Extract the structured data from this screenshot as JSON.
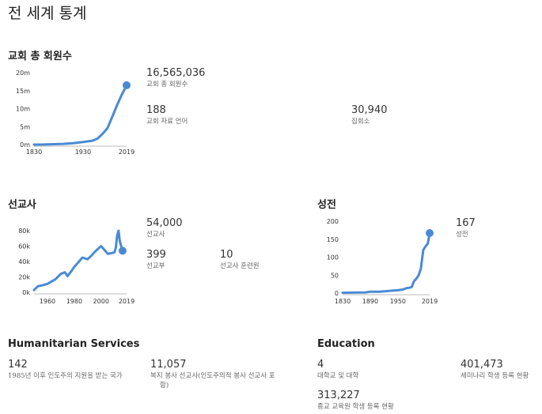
{
  "page": {
    "title": "전 세계 통계"
  },
  "colors": {
    "line": "#4a8ad4",
    "axis": "#bbbbbb",
    "text": "#333333"
  },
  "members": {
    "title": "교회 총 회원수",
    "stats": [
      {
        "value": "16,565,036",
        "label": "교회 총 회원수"
      },
      {
        "value": "188",
        "label": "교회 자료 언어"
      },
      {
        "value": "30,940",
        "label": "집회소"
      }
    ]
  },
  "missionaries": {
    "title": "선교사",
    "stats": [
      {
        "value": "54,000",
        "label": "선교사"
      },
      {
        "value": "399",
        "label": "선교부"
      },
      {
        "value": "10",
        "label": "선교사 훈련원"
      }
    ]
  },
  "temples": {
    "title": "성전",
    "stats": [
      {
        "value": "167",
        "label": "성전"
      }
    ]
  },
  "humanitarian": {
    "title": "Humanitarian Services",
    "stats": [
      {
        "value": "142",
        "label": "1985년 이후 인도주의 지원을 받는 국가"
      },
      {
        "value": "11,057",
        "label": "복지 봉사 선교사(인도주의적 봉사 선교사 포",
        "label_line2": "함)"
      }
    ]
  },
  "education": {
    "title": "Education",
    "stats": [
      {
        "value": "4",
        "label": "대학교 및 대학"
      },
      {
        "value": "401,473",
        "label": "세미나리 학생 등록 현황"
      },
      {
        "value": "313,227",
        "label": "종교 교육원 학생 등록 현황"
      }
    ]
  },
  "chart_data": [
    {
      "type": "line",
      "series": [
        {
          "x": [
            1830,
            1850,
            1870,
            1890,
            1910,
            1930,
            1940,
            1950,
            1960,
            1970,
            1980,
            1990,
            2000,
            2010,
            2019
          ],
          "values": [
            0.0,
            0.02,
            0.1,
            0.2,
            0.4,
            0.7,
            0.9,
            1.1,
            1.7,
            3.0,
            4.6,
            7.8,
            11.1,
            14.1,
            16.5
          ]
        }
      ],
      "x_ticks": [
        "1830",
        "1930",
        "2019"
      ],
      "y_ticks": [
        "0m",
        "5m",
        "10m",
        "15m",
        "20m"
      ],
      "xlim": [
        1830,
        2019
      ],
      "ylim": [
        0,
        20
      ],
      "end_marker": true
    },
    {
      "type": "line",
      "series": [
        {
          "x": [
            1950,
            1953,
            1956,
            1960,
            1963,
            1966,
            1970,
            1973,
            1975,
            1978,
            1980,
            1983,
            1986,
            1990,
            1993,
            1995,
            1998,
            2000,
            2002,
            2005,
            2008,
            2010,
            2011,
            2012,
            2013,
            2014,
            2016
          ],
          "values": [
            3,
            8,
            9,
            11,
            14,
            17,
            24,
            26,
            21,
            28,
            33,
            39,
            45,
            43,
            48,
            52,
            57,
            60,
            56,
            50,
            51,
            52,
            58,
            74,
            80,
            66,
            54
          ]
        }
      ],
      "x_ticks": [
        "1960",
        "1980",
        "2000",
        "2019"
      ],
      "y_ticks": [
        "0k",
        "20k",
        "40k",
        "60k",
        "80k"
      ],
      "xlim": [
        1950,
        2019
      ],
      "ylim": [
        0,
        80
      ],
      "end_marker": true
    },
    {
      "type": "line",
      "series": [
        {
          "x": [
            1830,
            1880,
            1890,
            1900,
            1910,
            1920,
            1930,
            1940,
            1950,
            1960,
            1970,
            1975,
            1980,
            1985,
            1990,
            1995,
            2000,
            2005,
            2010,
            2015,
            2019
          ],
          "values": [
            1,
            2,
            4,
            4,
            4,
            5,
            6,
            7,
            8,
            10,
            14,
            15,
            17,
            33,
            40,
            49,
            68,
            120,
            130,
            138,
            167
          ]
        }
      ],
      "x_ticks": [
        "1830",
        "1890",
        "1950",
        "2019"
      ],
      "y_ticks": [
        "0",
        "50",
        "100",
        "150",
        "200"
      ],
      "xlim": [
        1830,
        2019
      ],
      "ylim": [
        0,
        200
      ],
      "end_marker": true
    }
  ]
}
